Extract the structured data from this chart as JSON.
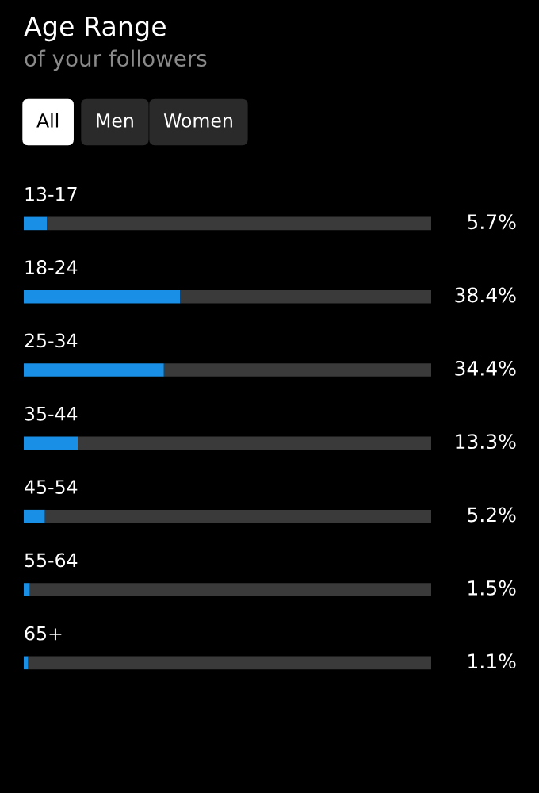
{
  "chart_data": {
    "type": "bar",
    "orientation": "horizontal",
    "stacked": true,
    "title": "Age Range",
    "subtitle": "of your followers",
    "annotations": [
      "All",
      "Men",
      "Women"
    ],
    "categories": [
      "13-17",
      "18-24",
      "25-34",
      "35-44",
      "45-54",
      "55-64",
      "65+"
    ],
    "xlim": [
      0,
      100
    ],
    "series": [
      {
        "color": "#1a8fe6",
        "values": [
          5.7,
          38.4,
          34.4,
          13.3,
          5.2,
          1.5,
          1.1
        ],
        "value_labels": [
          "5.7%",
          "38.4%",
          "34.4%",
          "13.3%",
          "5.2%",
          "1.5%",
          "1.1%"
        ]
      },
      {
        "color": "#3a3a3a",
        "values": [
          94.3,
          61.6,
          65.6,
          86.7,
          94.8,
          98.5,
          98.9
        ]
      }
    ],
    "legend": false
  }
}
